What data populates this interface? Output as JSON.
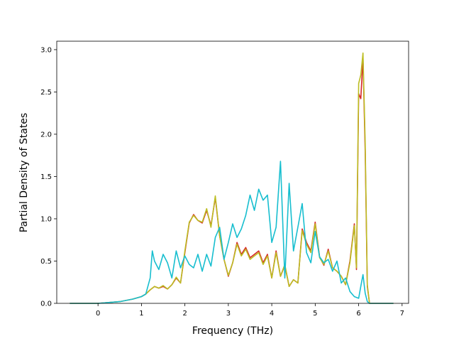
{
  "chart_data": {
    "type": "line",
    "title": "",
    "xlabel": "Frequency (THz)",
    "ylabel": "Partial Density of States",
    "xlim": [
      -0.95,
      7.15
    ],
    "ylim": [
      0.0,
      3.1
    ],
    "xticks": [
      0,
      1,
      2,
      3,
      4,
      5,
      6,
      7
    ],
    "xtick_labels": [
      "0",
      "1",
      "2",
      "3",
      "4",
      "5",
      "6",
      "7"
    ],
    "yticks": [
      0.0,
      0.5,
      1.0,
      1.5,
      2.0,
      2.5,
      3.0
    ],
    "ytick_labels": [
      "0.0",
      "0.5",
      "1.0",
      "1.5",
      "2.0",
      "2.5",
      "3.0"
    ],
    "grid": false,
    "legend": "none",
    "series": [
      {
        "color": "#d62728",
        "x": [
          -0.65,
          0.0,
          0.5,
          0.8,
          1.0,
          1.1,
          1.2,
          1.3,
          1.4,
          1.5,
          1.6,
          1.7,
          1.8,
          1.9,
          2.0,
          2.1,
          2.2,
          2.3,
          2.4,
          2.5,
          2.6,
          2.7,
          2.8,
          2.9,
          3.0,
          3.1,
          3.2,
          3.3,
          3.4,
          3.5,
          3.6,
          3.7,
          3.8,
          3.9,
          4.0,
          4.1,
          4.2,
          4.3,
          4.4,
          4.5,
          4.6,
          4.7,
          4.8,
          4.9,
          5.0,
          5.1,
          5.2,
          5.3,
          5.4,
          5.5,
          5.6,
          5.7,
          5.8,
          5.9,
          5.95,
          6.0,
          6.05,
          6.1,
          6.15,
          6.2,
          6.25,
          6.8
        ],
        "y": [
          0.0,
          0.0,
          0.02,
          0.05,
          0.08,
          0.11,
          0.16,
          0.2,
          0.18,
          0.2,
          0.17,
          0.22,
          0.3,
          0.24,
          0.6,
          0.95,
          1.05,
          0.98,
          0.95,
          1.1,
          0.92,
          1.25,
          0.8,
          0.52,
          0.32,
          0.48,
          0.72,
          0.58,
          0.66,
          0.54,
          0.58,
          0.62,
          0.48,
          0.58,
          0.3,
          0.62,
          0.32,
          0.45,
          0.2,
          0.28,
          0.24,
          0.88,
          0.72,
          0.62,
          0.96,
          0.55,
          0.45,
          0.64,
          0.42,
          0.38,
          0.32,
          0.22,
          0.5,
          0.94,
          0.4,
          2.48,
          2.42,
          2.9,
          1.8,
          0.2,
          0.0,
          0.0
        ]
      },
      {
        "color": "#bcbd22",
        "x": [
          -0.65,
          0.0,
          0.5,
          0.8,
          1.0,
          1.1,
          1.2,
          1.3,
          1.4,
          1.5,
          1.6,
          1.7,
          1.8,
          1.9,
          2.0,
          2.1,
          2.2,
          2.3,
          2.4,
          2.5,
          2.6,
          2.7,
          2.8,
          2.9,
          3.0,
          3.1,
          3.2,
          3.3,
          3.4,
          3.5,
          3.6,
          3.7,
          3.8,
          3.9,
          4.0,
          4.1,
          4.2,
          4.3,
          4.4,
          4.5,
          4.6,
          4.7,
          4.8,
          4.9,
          5.0,
          5.1,
          5.2,
          5.3,
          5.4,
          5.5,
          5.6,
          5.7,
          5.8,
          5.9,
          5.95,
          6.0,
          6.05,
          6.1,
          6.15,
          6.2,
          6.25,
          6.8
        ],
        "y": [
          0.0,
          0.0,
          0.02,
          0.05,
          0.08,
          0.11,
          0.16,
          0.2,
          0.18,
          0.21,
          0.17,
          0.22,
          0.31,
          0.24,
          0.62,
          0.96,
          1.04,
          0.98,
          0.96,
          1.12,
          0.9,
          1.27,
          0.8,
          0.52,
          0.33,
          0.48,
          0.7,
          0.56,
          0.64,
          0.52,
          0.56,
          0.6,
          0.46,
          0.56,
          0.3,
          0.6,
          0.32,
          0.46,
          0.2,
          0.28,
          0.24,
          0.86,
          0.7,
          0.6,
          0.94,
          0.54,
          0.46,
          0.62,
          0.42,
          0.38,
          0.32,
          0.22,
          0.48,
          0.92,
          0.42,
          2.6,
          2.7,
          2.96,
          1.9,
          0.22,
          0.0,
          0.0
        ]
      },
      {
        "color": "#17becf",
        "x": [
          -0.65,
          0.0,
          0.5,
          0.8,
          1.0,
          1.1,
          1.2,
          1.25,
          1.3,
          1.4,
          1.5,
          1.6,
          1.7,
          1.8,
          1.9,
          2.0,
          2.1,
          2.2,
          2.3,
          2.4,
          2.5,
          2.6,
          2.7,
          2.8,
          2.9,
          3.0,
          3.1,
          3.2,
          3.3,
          3.4,
          3.5,
          3.6,
          3.7,
          3.8,
          3.9,
          4.0,
          4.1,
          4.2,
          4.3,
          4.4,
          4.5,
          4.6,
          4.7,
          4.8,
          4.9,
          5.0,
          5.1,
          5.2,
          5.3,
          5.4,
          5.5,
          5.6,
          5.7,
          5.8,
          5.9,
          6.0,
          6.05,
          6.1,
          6.15,
          6.2,
          6.25,
          6.8
        ],
        "y": [
          0.0,
          0.0,
          0.02,
          0.05,
          0.08,
          0.11,
          0.3,
          0.62,
          0.5,
          0.4,
          0.58,
          0.48,
          0.3,
          0.62,
          0.42,
          0.56,
          0.46,
          0.42,
          0.58,
          0.38,
          0.58,
          0.44,
          0.78,
          0.9,
          0.52,
          0.72,
          0.94,
          0.78,
          0.88,
          1.04,
          1.28,
          1.1,
          1.35,
          1.22,
          1.28,
          0.72,
          0.9,
          1.68,
          0.3,
          1.42,
          0.62,
          0.9,
          1.18,
          0.6,
          0.48,
          0.85,
          0.55,
          0.48,
          0.52,
          0.38,
          0.5,
          0.24,
          0.3,
          0.14,
          0.08,
          0.06,
          0.2,
          0.34,
          0.12,
          0.02,
          0.0,
          0.0
        ]
      }
    ]
  }
}
